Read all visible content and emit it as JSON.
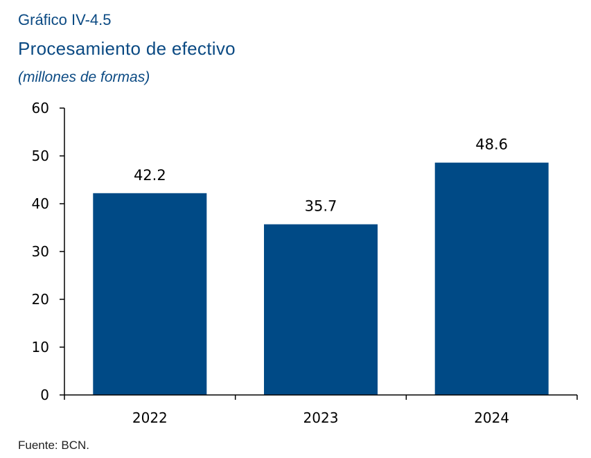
{
  "header": {
    "kicker": "Gráfico IV-4.5",
    "title": "Procesamiento de efectivo",
    "subtitle": "(millones de formas)"
  },
  "footer": {
    "source": "Fuente: BCN."
  },
  "chart_data": {
    "type": "bar",
    "categories": [
      "2022",
      "2023",
      "2024"
    ],
    "values": [
      42.2,
      35.7,
      48.6
    ],
    "data_labels": [
      "42.2",
      "35.7",
      "48.6"
    ],
    "title": "Procesamiento de efectivo",
    "subtitle": "(millones de formas)",
    "xlabel": "",
    "ylabel": "",
    "ylim": [
      0,
      60
    ],
    "yticks": [
      0,
      10,
      20,
      30,
      40,
      50,
      60
    ],
    "grid": false,
    "legend": "none",
    "colors": {
      "bar": "#004a86",
      "axis": "#000000",
      "heading": "#0b4a83"
    }
  }
}
